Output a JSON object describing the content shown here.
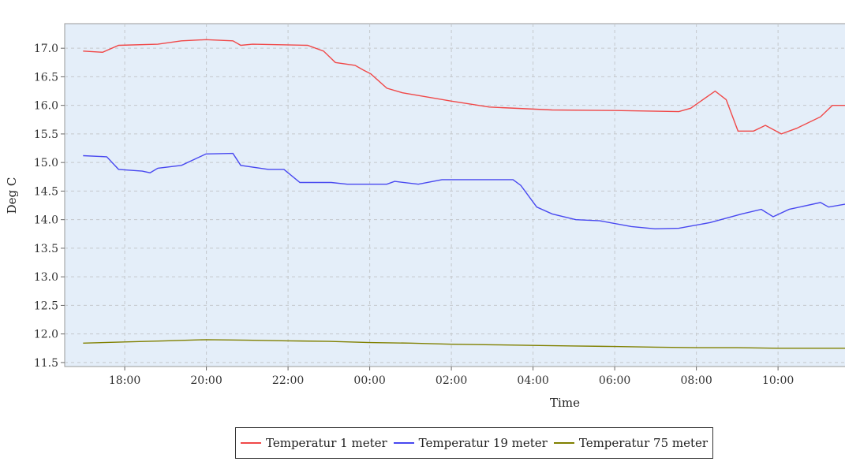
{
  "chart_data": {
    "type": "line",
    "title": "",
    "xlabel": "Time",
    "ylabel": "Deg C",
    "x_units": "hours since 00:00 of first day (24 = 00:00 next day)",
    "xlim": [
      16.53,
      35.64
    ],
    "ylim": [
      11.43,
      17.43
    ],
    "grid": true,
    "legend_position": "bottom-right",
    "x_ticks": [
      {
        "value": 18,
        "label": "18:00"
      },
      {
        "value": 20,
        "label": "20:00"
      },
      {
        "value": 22,
        "label": "22:00"
      },
      {
        "value": 24,
        "label": "00:00"
      },
      {
        "value": 26,
        "label": "02:00"
      },
      {
        "value": 28,
        "label": "04:00"
      },
      {
        "value": 30,
        "label": "06:00"
      },
      {
        "value": 32,
        "label": "08:00"
      },
      {
        "value": 34,
        "label": "10:00"
      }
    ],
    "y_ticks": [
      "11.5",
      "12.0",
      "12.5",
      "13.0",
      "13.5",
      "14.0",
      "14.5",
      "15.0",
      "15.5",
      "16.0",
      "16.5",
      "17.0"
    ],
    "series": [
      {
        "name": "Temperatur 1 meter",
        "color": "#f04848",
        "x": [
          16.98,
          17.46,
          17.85,
          18.81,
          19.39,
          19.99,
          20.65,
          20.84,
          21.13,
          22.48,
          22.87,
          23.16,
          23.64,
          23.84,
          24.03,
          24.42,
          24.8,
          25.96,
          26.93,
          28.47,
          30.02,
          31.57,
          31.86,
          32.46,
          32.73,
          33.02,
          33.4,
          33.69,
          34.08,
          34.46,
          35.04,
          35.33,
          35.64
        ],
        "y": [
          16.95,
          16.93,
          17.05,
          17.07,
          17.13,
          17.15,
          17.13,
          17.05,
          17.07,
          17.05,
          16.95,
          16.75,
          16.7,
          16.62,
          16.55,
          16.3,
          16.22,
          16.08,
          15.97,
          15.92,
          15.91,
          15.89,
          15.95,
          16.25,
          16.1,
          15.55,
          15.55,
          15.65,
          15.5,
          15.6,
          15.8,
          16.0,
          16.0
        ]
      },
      {
        "name": "Temperatur 19 meter",
        "color": "#4848f0",
        "x": [
          16.98,
          17.56,
          17.85,
          18.43,
          18.62,
          18.81,
          19.39,
          19.99,
          20.65,
          20.84,
          21.52,
          21.9,
          22.29,
          23.06,
          23.45,
          24.42,
          24.61,
          25.19,
          25.77,
          27.51,
          27.7,
          28.09,
          28.47,
          29.05,
          29.63,
          30.41,
          30.99,
          31.57,
          32.34,
          33.11,
          33.59,
          33.88,
          34.27,
          35.04,
          35.24,
          35.64
        ],
        "y": [
          15.12,
          15.1,
          14.88,
          14.85,
          14.82,
          14.9,
          14.95,
          15.15,
          15.16,
          14.95,
          14.88,
          14.88,
          14.65,
          14.65,
          14.62,
          14.62,
          14.67,
          14.62,
          14.7,
          14.7,
          14.6,
          14.22,
          14.1,
          14.0,
          13.98,
          13.88,
          13.84,
          13.85,
          13.95,
          14.1,
          14.18,
          14.05,
          14.18,
          14.3,
          14.22,
          14.27
        ]
      },
      {
        "name": "Temperatur 75 meter",
        "color": "#808000",
        "x": [
          16.98,
          18,
          19,
          20,
          21,
          22,
          23,
          24,
          25,
          26,
          27,
          28,
          29,
          30,
          31,
          32,
          33,
          34,
          35.64
        ],
        "y": [
          11.84,
          11.86,
          11.88,
          11.9,
          11.89,
          11.88,
          11.87,
          11.85,
          11.84,
          11.82,
          11.81,
          11.8,
          11.79,
          11.78,
          11.77,
          11.76,
          11.76,
          11.75,
          11.75
        ]
      }
    ]
  }
}
